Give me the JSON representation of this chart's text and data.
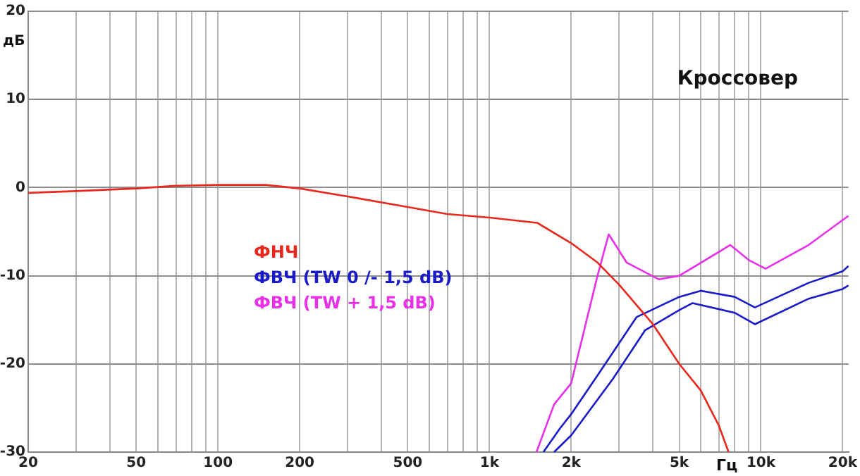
{
  "chart_data": {
    "type": "line",
    "title": "Кроссовер",
    "xlabel": "Гц",
    "ylabel": "дБ",
    "log": "x",
    "grid": true,
    "legend": "center",
    "marker": "none",
    "line_style": "solid",
    "xlim": [
      20,
      21000
    ],
    "ylim": [
      -30,
      20
    ],
    "xticks": [
      20,
      {
        "value": 30,
        "label": null
      },
      {
        "value": 40,
        "label": null
      },
      50,
      {
        "value": 60,
        "label": null
      },
      {
        "value": 70,
        "label": null
      },
      {
        "value": 80,
        "label": null
      },
      {
        "value": 90,
        "label": null
      },
      100,
      200,
      {
        "value": 300,
        "label": null
      },
      {
        "value": 400,
        "label": null
      },
      500,
      {
        "value": 600,
        "label": null
      },
      {
        "value": 700,
        "label": null
      },
      {
        "value": 800,
        "label": null
      },
      {
        "value": 900,
        "label": null
      },
      {
        "value": 1000,
        "label": "1k"
      },
      {
        "value": 2000,
        "label": "2k"
      },
      {
        "value": 3000,
        "label": null
      },
      {
        "value": 4000,
        "label": null
      },
      {
        "value": 5000,
        "label": "5k"
      },
      {
        "value": 6000,
        "label": null
      },
      {
        "value": 7000,
        "label": null
      },
      {
        "value": 8000,
        "label": null
      },
      {
        "value": 9000,
        "label": null
      },
      {
        "value": 10000,
        "label": "10k"
      },
      {
        "value": 20000,
        "label": "20k"
      }
    ],
    "yticks": [
      -30,
      -20,
      -10,
      0,
      10,
      20
    ],
    "series": [
      {
        "name": "ФНЧ",
        "color": "#e8281c",
        "x": [
          20,
          30,
          50,
          70,
          100,
          150,
          200,
          300,
          500,
          700,
          1000,
          1500,
          2000,
          2500,
          3000,
          4000,
          5000,
          6000,
          7000,
          7600
        ],
        "values": [
          -0.6,
          -0.4,
          -0.1,
          0.2,
          0.3,
          0.3,
          -0.1,
          -1.0,
          -2.2,
          -3.0,
          -3.4,
          -4.0,
          -6.3,
          -8.5,
          -11,
          -15.5,
          -20,
          -23,
          -27,
          -30
        ]
      },
      {
        "name": "ФВЧ (TW 0 /- 1,5 dB)",
        "color": "#1a1ac8",
        "x": [
          1580,
          1820,
          2000,
          2540,
          3480,
          5000,
          6000,
          8000,
          9500,
          15000,
          20000,
          21000
        ],
        "values": [
          -30,
          -27.3,
          -25.7,
          -21,
          -14.7,
          -12.4,
          -11.7,
          -12.4,
          -13.6,
          -10.8,
          -9.5,
          -8.9
        ]
      },
      {
        "color": "#1a1ac8",
        "x": [
          1730,
          2000,
          2850,
          3740,
          5000,
          5600,
          8000,
          9500,
          15000,
          20000,
          21000
        ],
        "values": [
          -30,
          -28.1,
          -21.7,
          -16.2,
          -13.9,
          -13.1,
          -14.2,
          -15.5,
          -12.6,
          -11.5,
          -11.1
        ]
      },
      {
        "name": "ФВЧ (TW + 1,5 dB)",
        "color": "#e830e8",
        "x": [
          1490,
          1730,
          2000,
          2500,
          2750,
          3200,
          4200,
          5000,
          7000,
          7700,
          9000,
          10400,
          15000,
          21000
        ],
        "values": [
          -30,
          -24.6,
          -22.2,
          -10,
          -5.3,
          -8.5,
          -10.4,
          -10,
          -7.3,
          -6.5,
          -8.2,
          -9.2,
          -6.5,
          -3.2
        ]
      }
    ]
  }
}
